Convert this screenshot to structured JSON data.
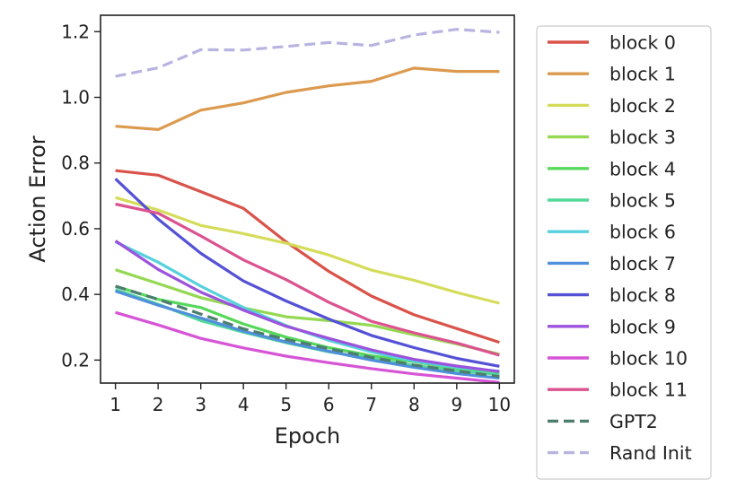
{
  "chart_data": {
    "type": "line",
    "title": "",
    "xlabel": "Epoch",
    "ylabel": "Action Error",
    "x": [
      1,
      2,
      3,
      4,
      5,
      6,
      7,
      8,
      9,
      10
    ],
    "xlim": [
      0.65,
      10.35
    ],
    "ylim": [
      0.13,
      1.25
    ],
    "xticks": [
      "1",
      "2",
      "3",
      "4",
      "5",
      "6",
      "7",
      "8",
      "9",
      "10"
    ],
    "yticks": [
      "0.2",
      "0.4",
      "0.6",
      "0.8",
      "1.0",
      "1.2"
    ],
    "ytick_values": [
      0.2,
      0.4,
      0.6,
      0.8,
      1.0,
      1.2
    ],
    "legend_position": "outside-right",
    "series": [
      {
        "name": "block 0",
        "color": "#d9534a",
        "style": "solid",
        "values": [
          0.777,
          0.763,
          0.713,
          0.662,
          0.56,
          0.47,
          0.395,
          0.338,
          0.296,
          0.254
        ]
      },
      {
        "name": "block 1",
        "color": "#dc9a4f",
        "style": "solid",
        "values": [
          0.912,
          0.902,
          0.961,
          0.983,
          1.015,
          1.035,
          1.049,
          1.089,
          1.079,
          1.079
        ]
      },
      {
        "name": "block 2",
        "color": "#d4dc5a",
        "style": "solid",
        "values": [
          0.695,
          0.657,
          0.61,
          0.585,
          0.556,
          0.52,
          0.474,
          0.443,
          0.406,
          0.373
        ]
      },
      {
        "name": "block 3",
        "color": "#94d853",
        "style": "solid",
        "values": [
          0.475,
          0.433,
          0.39,
          0.359,
          0.332,
          0.32,
          0.306,
          0.277,
          0.249,
          0.218
        ]
      },
      {
        "name": "block 4",
        "color": "#56d85a",
        "style": "solid",
        "values": [
          0.425,
          0.385,
          0.36,
          0.31,
          0.27,
          0.238,
          0.213,
          0.195,
          0.175,
          0.162
        ]
      },
      {
        "name": "block 5",
        "color": "#53d89a",
        "style": "solid",
        "values": [
          0.415,
          0.37,
          0.32,
          0.285,
          0.253,
          0.225,
          0.205,
          0.184,
          0.168,
          0.156
        ]
      },
      {
        "name": "block 6",
        "color": "#56d1dc",
        "style": "solid",
        "values": [
          0.56,
          0.498,
          0.425,
          0.36,
          0.305,
          0.26,
          0.225,
          0.197,
          0.178,
          0.166
        ]
      },
      {
        "name": "block 7",
        "color": "#4f8fdc",
        "style": "solid",
        "values": [
          0.41,
          0.367,
          0.328,
          0.288,
          0.255,
          0.227,
          0.2,
          0.178,
          0.159,
          0.145
        ]
      },
      {
        "name": "block 8",
        "color": "#5451d6",
        "style": "solid",
        "values": [
          0.752,
          0.629,
          0.525,
          0.441,
          0.38,
          0.325,
          0.275,
          0.238,
          0.205,
          0.181
        ]
      },
      {
        "name": "block 9",
        "color": "#9b52dc",
        "style": "solid",
        "values": [
          0.563,
          0.476,
          0.407,
          0.352,
          0.303,
          0.266,
          0.231,
          0.202,
          0.182,
          0.165
        ]
      },
      {
        "name": "block 10",
        "color": "#d654d6",
        "style": "solid",
        "values": [
          0.345,
          0.307,
          0.266,
          0.237,
          0.212,
          0.192,
          0.174,
          0.158,
          0.145,
          0.132
        ]
      },
      {
        "name": "block 11",
        "color": "#dc528f",
        "style": "solid",
        "values": [
          0.675,
          0.647,
          0.578,
          0.505,
          0.445,
          0.376,
          0.318,
          0.283,
          0.252,
          0.215
        ]
      },
      {
        "name": "GPT2",
        "color": "#4c7e6e",
        "style": "dashed",
        "values": [
          0.425,
          0.385,
          0.34,
          0.295,
          0.263,
          0.235,
          0.208,
          0.185,
          0.167,
          0.15
        ]
      },
      {
        "name": "Rand Init",
        "color": "#b8b4e1",
        "style": "dashed",
        "values": [
          1.064,
          1.09,
          1.145,
          1.144,
          1.155,
          1.167,
          1.158,
          1.19,
          1.207,
          1.198
        ]
      }
    ]
  }
}
